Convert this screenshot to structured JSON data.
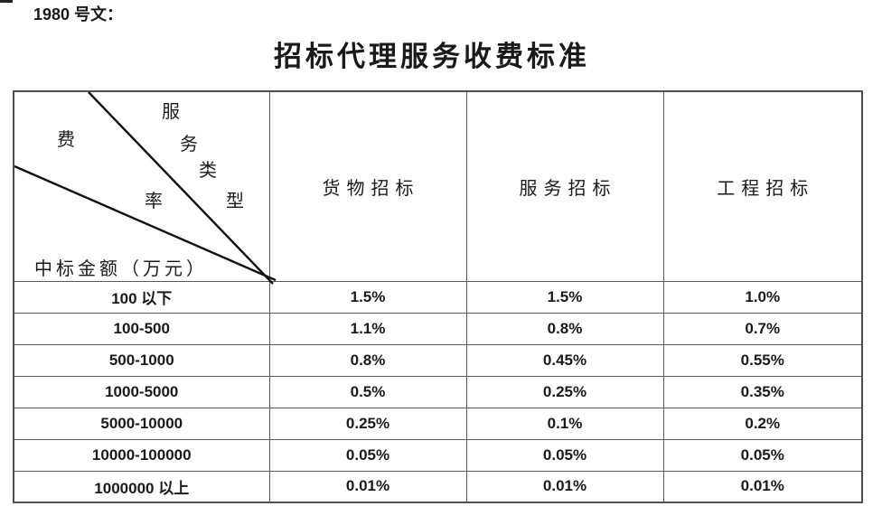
{
  "page": {
    "doc_label": "1980 号文：",
    "title": "招标代理服务收费标准"
  },
  "table": {
    "corner": {
      "service_type_label": "服务类型",
      "service_type_chars": [
        "服",
        "务",
        "类",
        "型"
      ],
      "fee_rate_label": "费率",
      "fee_rate_chars": [
        "费",
        "率"
      ],
      "amount_label": "中标金额（万元）"
    },
    "columns": [
      "货物招标",
      "服务招标",
      "工程招标"
    ],
    "rows": [
      {
        "range": "100 以下",
        "values": [
          "1.5%",
          "1.5%",
          "1.0%"
        ]
      },
      {
        "range": "100-500",
        "values": [
          "1.1%",
          "0.8%",
          "0.7%"
        ]
      },
      {
        "range": "500-1000",
        "values": [
          "0.8%",
          "0.45%",
          "0.55%"
        ]
      },
      {
        "range": "1000-5000",
        "values": [
          "0.5%",
          "0.25%",
          "0.35%"
        ]
      },
      {
        "range": "5000-10000",
        "values": [
          "0.25%",
          "0.1%",
          "0.2%"
        ]
      },
      {
        "range": "10000-100000",
        "values": [
          "0.05%",
          "0.05%",
          "0.05%"
        ]
      },
      {
        "range": "1000000 以上",
        "values": [
          "0.01%",
          "0.01%",
          "0.01%"
        ]
      }
    ],
    "line_color": "#111111",
    "border_color": "#5a5a5a"
  }
}
